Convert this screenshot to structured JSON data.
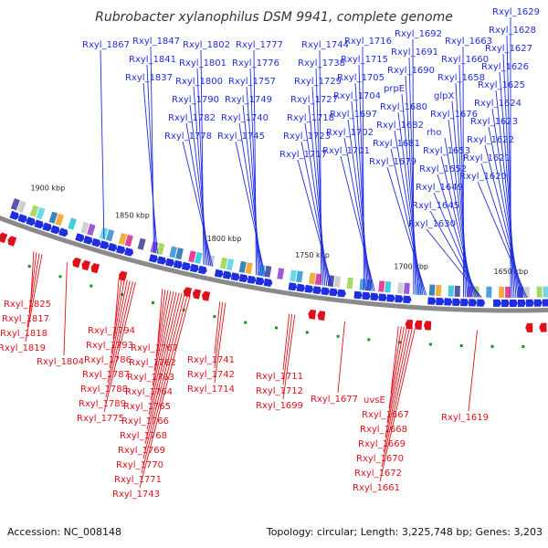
{
  "title": "Rubrobacter xylanophilus DSM 9941, complete genome",
  "accession": "Accession: NC_008148",
  "summary": "Topology: circular; Length: 3,225,748 bp; Genes: 3,203",
  "colors": {
    "forward": "#1f2ee0",
    "reverse": "#e0101a",
    "backbone": "#8a8a8a",
    "gc": "#1f8f1f"
  },
  "kbp_ticks": [
    "1900 kbp",
    "1850 kbp",
    "1800 kbp",
    "1750 kbp",
    "1700 kbp",
    "1650 kbp"
  ],
  "forward_genes": [
    "Rxyl_1867",
    "Rxyl_1847",
    "Rxyl_1841",
    "Rxyl_1837",
    "Rxyl_1802",
    "Rxyl_1801",
    "Rxyl_1800",
    "Rxyl_1790",
    "Rxyl_1782",
    "Rxyl_1778",
    "Rxyl_1777",
    "Rxyl_1776",
    "Rxyl_1757",
    "Rxyl_1749",
    "Rxyl_1740",
    "Rxyl_1745",
    "Rxyl_1744",
    "Rxyl_1738",
    "Rxyl_1729",
    "Rxyl_1727",
    "Rxyl_1718",
    "Rxyl_1723",
    "Rxyl_1717",
    "Rxyl_1716",
    "Rxyl_1715",
    "Rxyl_1705",
    "Rxyl_1704",
    "Rxyl_1697",
    "Rxyl_1702",
    "Rxyl_1701",
    "Rxyl_1692",
    "Rxyl_1691",
    "Rxyl_1690",
    "prpE",
    "Rxyl_1680",
    "Rxyl_1682",
    "Rxyl_1681",
    "Rxyl_1679",
    "Rxyl_1663",
    "Rxyl_1660",
    "Rxyl_1658",
    "glpX",
    "Rxyl_1676",
    "rho",
    "Rxyl_1653",
    "Rxyl_1652",
    "Rxyl_1649",
    "Rxyl_1645",
    "Rxyl_1630",
    "Rxyl_1629",
    "Rxyl_1628",
    "Rxyl_1627",
    "Rxyl_1626",
    "Rxyl_1625",
    "Rxyl_1624",
    "Rxyl_1623",
    "Rxyl_1622",
    "Rxyl_1621",
    "Rxyl_1620"
  ],
  "reverse_genes": [
    "Rxyl_1825",
    "Rxyl_1817",
    "Rxyl_1818",
    "Rxyl_1819",
    "Rxyl_1804",
    "Rxyl_1794",
    "Rxyl_1793",
    "Rxyl_1786",
    "Rxyl_1787",
    "Rxyl_1788",
    "Rxyl_1789",
    "Rxyl_1775",
    "Rxyl_1767",
    "Rxyl_1762",
    "Rxyl_1763",
    "Rxyl_1764",
    "Rxyl_1765",
    "Rxyl_1766",
    "Rxyl_1768",
    "Rxyl_1769",
    "Rxyl_1770",
    "Rxyl_1771",
    "Rxyl_1743",
    "Rxyl_1741",
    "Rxyl_1742",
    "Rxyl_1714",
    "Rxyl_1711",
    "Rxyl_1712",
    "Rxyl_1699",
    "Rxyl_1677",
    "uvsE",
    "Rxyl_1667",
    "Rxyl_1668",
    "Rxyl_1669",
    "Rxyl_1670",
    "Rxyl_1672",
    "Rxyl_1661",
    "Rxyl_1619"
  ]
}
